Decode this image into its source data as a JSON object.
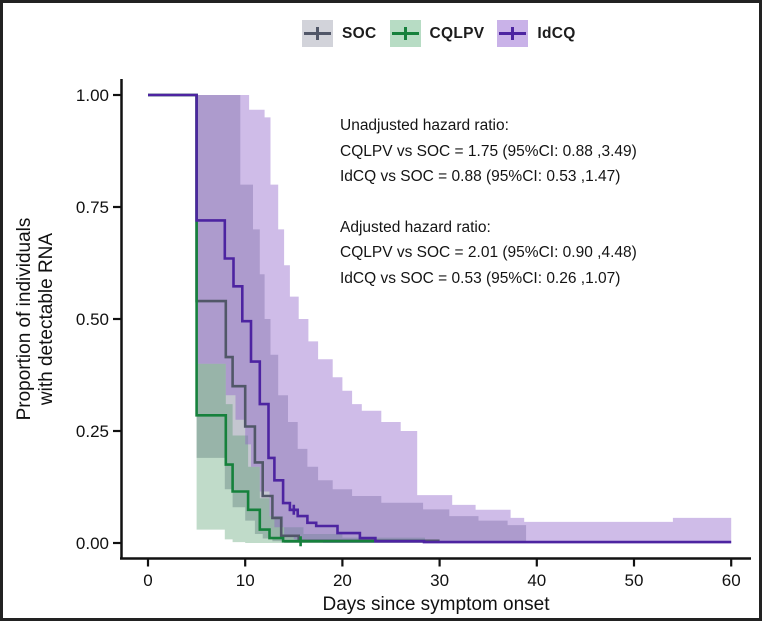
{
  "figure": {
    "legend": [
      {
        "label": "SOC",
        "line_color": "#515768",
        "key_bg": "#d2d3da"
      },
      {
        "label": "CQLPV",
        "line_color": "#16813c",
        "key_bg": "#b7dcc4"
      },
      {
        "label": "IdCQ",
        "line_color": "#4d24a1",
        "key_bg": "#c9b2e8"
      }
    ],
    "annotations": {
      "unadjusted_title": "Unadjusted hazard ratio:",
      "unadjusted_cqlpv": "CQLPV vs SOC = 1.75 (95%CI: 0.88 ,3.49)",
      "unadjusted_idcq": "IdCQ vs SOC = 0.88 (95%CI: 0.53 ,1.47)",
      "adjusted_title": "Adjusted hazard ratio:",
      "adjusted_cqlpv": "CQLPV vs SOC = 2.01 (95%CI: 0.90 ,4.48)",
      "adjusted_idcq": "IdCQ vs SOC = 0.53 (95%CI: 0.26 ,1.07)"
    },
    "x_axis": {
      "label": "Days since symptom onset",
      "tick_labels": [
        "0",
        "10",
        "20",
        "30",
        "40",
        "50",
        "60"
      ],
      "tick_values": [
        0,
        10,
        20,
        30,
        40,
        50,
        60
      ]
    },
    "y_axis": {
      "label_line1": "Proportion of individuals",
      "label_line2": "with detectable RNA",
      "tick_labels": [
        "0.00",
        "0.25",
        "0.50",
        "0.75",
        "1.00"
      ],
      "tick_values": [
        0,
        0.25,
        0.5,
        0.75,
        1
      ]
    }
  },
  "chart_data": {
    "type": "line",
    "subtype": "kaplan-meier-step-with-confidence-bands",
    "title": "",
    "xlabel": "Days since symptom onset",
    "ylabel": "Proportion of individuals with detectable RNA",
    "xlim": [
      0,
      60
    ],
    "ylim": [
      0,
      1
    ],
    "grid": false,
    "legend_position": "top-center",
    "series": [
      {
        "name": "SOC",
        "line_color": "#515768",
        "band_fill": "rgba(99,105,131,0.38)",
        "steps": [
          [
            0,
            1.0
          ],
          [
            5,
            0.54
          ],
          [
            8,
            0.415
          ],
          [
            8.7,
            0.35
          ],
          [
            10,
            0.26
          ],
          [
            11,
            0.18
          ],
          [
            11.8,
            0.105
          ],
          [
            12.8,
            0.056
          ],
          [
            13.7,
            0.016
          ],
          [
            15.5,
            0.005
          ]
        ],
        "end": 30,
        "censors": [],
        "band": {
          "upper": [
            [
              5,
              1.0
            ],
            [
              9.5,
              0.8
            ],
            [
              10.8,
              0.7
            ],
            [
              11.5,
              0.6
            ],
            [
              12,
              0.5
            ],
            [
              12.6,
              0.42
            ],
            [
              13.4,
              0.33
            ],
            [
              14.4,
              0.27
            ],
            [
              15.4,
              0.21
            ],
            [
              16.4,
              0.17
            ],
            [
              17.5,
              0.14
            ],
            [
              19,
              0.12
            ],
            [
              21,
              0.105
            ],
            [
              24,
              0.09
            ],
            [
              28.3,
              0.075
            ],
            [
              31,
              0.06
            ],
            [
              34,
              0.05
            ],
            [
              37,
              0.04
            ]
          ],
          "lower": [
            [
              5,
              0.19
            ],
            [
              7.9,
              0.12
            ],
            [
              8.7,
              0.08
            ],
            [
              10,
              0.05
            ],
            [
              11,
              0.02
            ],
            [
              11.8,
              0.01
            ],
            [
              12.8,
              0.004
            ],
            [
              14,
              0.0
            ]
          ],
          "end": 38.9
        }
      },
      {
        "name": "CQLPV",
        "line_color": "#16813c",
        "band_fill": "rgba(58,143,88,0.32)",
        "steps": [
          [
            0,
            1.0
          ],
          [
            5,
            0.285
          ],
          [
            8,
            0.175
          ],
          [
            8.7,
            0.115
          ],
          [
            10.3,
            0.074
          ],
          [
            11.5,
            0.03
          ],
          [
            12.5,
            0.011
          ],
          [
            13.9,
            0.004
          ]
        ],
        "end": 28.5,
        "censors": [
          [
            15.7,
            0.004
          ]
        ],
        "band": {
          "upper": [
            [
              5,
              0.4
            ],
            [
              8,
              0.31
            ],
            [
              8.7,
              0.24
            ],
            [
              10.3,
              0.17
            ],
            [
              11.5,
              0.1
            ],
            [
              12.5,
              0.06
            ],
            [
              13.9,
              0.035
            ],
            [
              16,
              0.02
            ],
            [
              20,
              0.012
            ]
          ],
          "lower": [
            [
              5,
              0.03
            ],
            [
              7.9,
              0.008
            ],
            [
              8.7,
              0.002
            ],
            [
              10,
              0.0
            ]
          ],
          "end": 28.5
        }
      },
      {
        "name": "IdCQ",
        "line_color": "#4d24a1",
        "band_fill": "rgba(141,95,201,0.42)",
        "steps": [
          [
            0,
            1.0
          ],
          [
            5,
            0.72
          ],
          [
            7.9,
            0.635
          ],
          [
            8.8,
            0.573
          ],
          [
            9.7,
            0.495
          ],
          [
            10.6,
            0.405
          ],
          [
            11.5,
            0.31
          ],
          [
            12.4,
            0.19
          ],
          [
            13,
            0.14
          ],
          [
            13.9,
            0.089
          ],
          [
            14.6,
            0.074
          ],
          [
            15.4,
            0.06
          ],
          [
            16.4,
            0.045
          ],
          [
            17.3,
            0.038
          ],
          [
            19.5,
            0.022
          ],
          [
            21.8,
            0.011
          ],
          [
            23.4,
            0.004
          ],
          [
            28.4,
            0.002
          ]
        ],
        "end": 60,
        "censors": [
          [
            15.0,
            0.074
          ]
        ],
        "band": {
          "upper": [
            [
              5,
              1.0
            ],
            [
              10.4,
              0.967
            ],
            [
              12,
              0.95
            ],
            [
              12.6,
              0.8
            ],
            [
              13.4,
              0.7
            ],
            [
              14,
              0.62
            ],
            [
              14.6,
              0.55
            ],
            [
              15.5,
              0.5
            ],
            [
              16.5,
              0.45
            ],
            [
              17.5,
              0.41
            ],
            [
              19,
              0.37
            ],
            [
              20,
              0.34
            ],
            [
              21,
              0.31
            ],
            [
              22,
              0.295
            ],
            [
              24,
              0.27
            ],
            [
              26,
              0.25
            ],
            [
              27.7,
              0.107
            ],
            [
              31.3,
              0.085
            ],
            [
              33.7,
              0.074
            ],
            [
              37.3,
              0.056
            ],
            [
              38.7,
              0.047
            ],
            [
              54,
              0.056
            ]
          ],
          "lower": [
            [
              5,
              0.4
            ],
            [
              8,
              0.33
            ],
            [
              9,
              0.275
            ],
            [
              10,
              0.22
            ],
            [
              10.6,
              0.17
            ],
            [
              11.5,
              0.115
            ],
            [
              12.5,
              0.06
            ],
            [
              13,
              0.035
            ],
            [
              14,
              0.018
            ],
            [
              15,
              0.008
            ],
            [
              16.5,
              0.002
            ],
            [
              18,
              0.0
            ]
          ],
          "end": 60
        }
      }
    ]
  }
}
